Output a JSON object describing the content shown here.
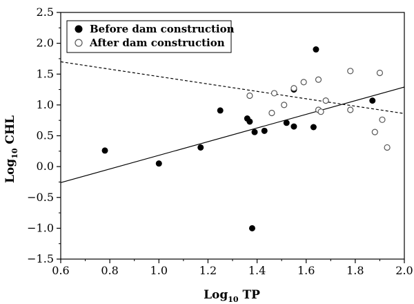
{
  "chart_data": {
    "type": "scatter",
    "xlabel": {
      "main": "Log",
      "sub": "10",
      "rest": " TP"
    },
    "ylabel": {
      "main": "Log",
      "sub": "10",
      "rest": " CHL"
    },
    "xlim": [
      0.6,
      2.0
    ],
    "ylim": [
      -1.5,
      2.5
    ],
    "xticks": [
      0.6,
      0.8,
      1.0,
      1.2,
      1.4,
      1.6,
      1.8,
      2.0
    ],
    "yticks": [
      -1.5,
      -1.0,
      -0.5,
      0.0,
      0.5,
      1.0,
      1.5,
      2.0,
      2.5
    ],
    "xtick_labels": [
      "0.6",
      "0.8",
      "1.0",
      "1.2",
      "1.4",
      "1.6",
      "1.8",
      "2.0"
    ],
    "ytick_labels": [
      "−1.5",
      "−1.0",
      "−0.5",
      "0.0",
      "0.5",
      "1.0",
      "1.5",
      "2.0",
      "2.5"
    ],
    "grid": false,
    "legend_position": "top-left",
    "series": [
      {
        "name": "Before dam construction",
        "marker": "filled-circle",
        "color": "#000000",
        "points": [
          {
            "x": 0.78,
            "y": 0.26
          },
          {
            "x": 1.0,
            "y": 0.05
          },
          {
            "x": 1.17,
            "y": 0.31
          },
          {
            "x": 1.25,
            "y": 0.91
          },
          {
            "x": 1.36,
            "y": 0.78
          },
          {
            "x": 1.37,
            "y": 0.73
          },
          {
            "x": 1.38,
            "y": -1.0
          },
          {
            "x": 1.39,
            "y": 0.56
          },
          {
            "x": 1.43,
            "y": 0.58
          },
          {
            "x": 1.52,
            "y": 0.71
          },
          {
            "x": 1.55,
            "y": 0.65
          },
          {
            "x": 1.55,
            "y": 1.25
          },
          {
            "x": 1.63,
            "y": 0.64
          },
          {
            "x": 1.64,
            "y": 1.9
          },
          {
            "x": 1.87,
            "y": 1.07
          }
        ]
      },
      {
        "name": "After dam construction",
        "marker": "open-circle",
        "color": "#555555",
        "points": [
          {
            "x": 1.37,
            "y": 1.15
          },
          {
            "x": 1.46,
            "y": 0.87
          },
          {
            "x": 1.47,
            "y": 1.19
          },
          {
            "x": 1.51,
            "y": 1.0
          },
          {
            "x": 1.55,
            "y": 1.27
          },
          {
            "x": 1.59,
            "y": 1.37
          },
          {
            "x": 1.65,
            "y": 1.41
          },
          {
            "x": 1.65,
            "y": 0.92
          },
          {
            "x": 1.66,
            "y": 0.89
          },
          {
            "x": 1.68,
            "y": 1.07
          },
          {
            "x": 1.78,
            "y": 1.55
          },
          {
            "x": 1.78,
            "y": 0.92
          },
          {
            "x": 1.88,
            "y": 0.56
          },
          {
            "x": 1.9,
            "y": 1.52
          },
          {
            "x": 1.91,
            "y": 0.76
          },
          {
            "x": 1.93,
            "y": 0.31
          }
        ]
      }
    ],
    "lines": [
      {
        "series": "Before dam construction",
        "style": "solid",
        "x": [
          0.6,
          2.0
        ],
        "y": [
          -0.26,
          1.29
        ]
      },
      {
        "series": "After dam construction",
        "style": "dashed",
        "x": [
          0.6,
          2.0
        ],
        "y": [
          1.7,
          0.86
        ]
      }
    ]
  }
}
